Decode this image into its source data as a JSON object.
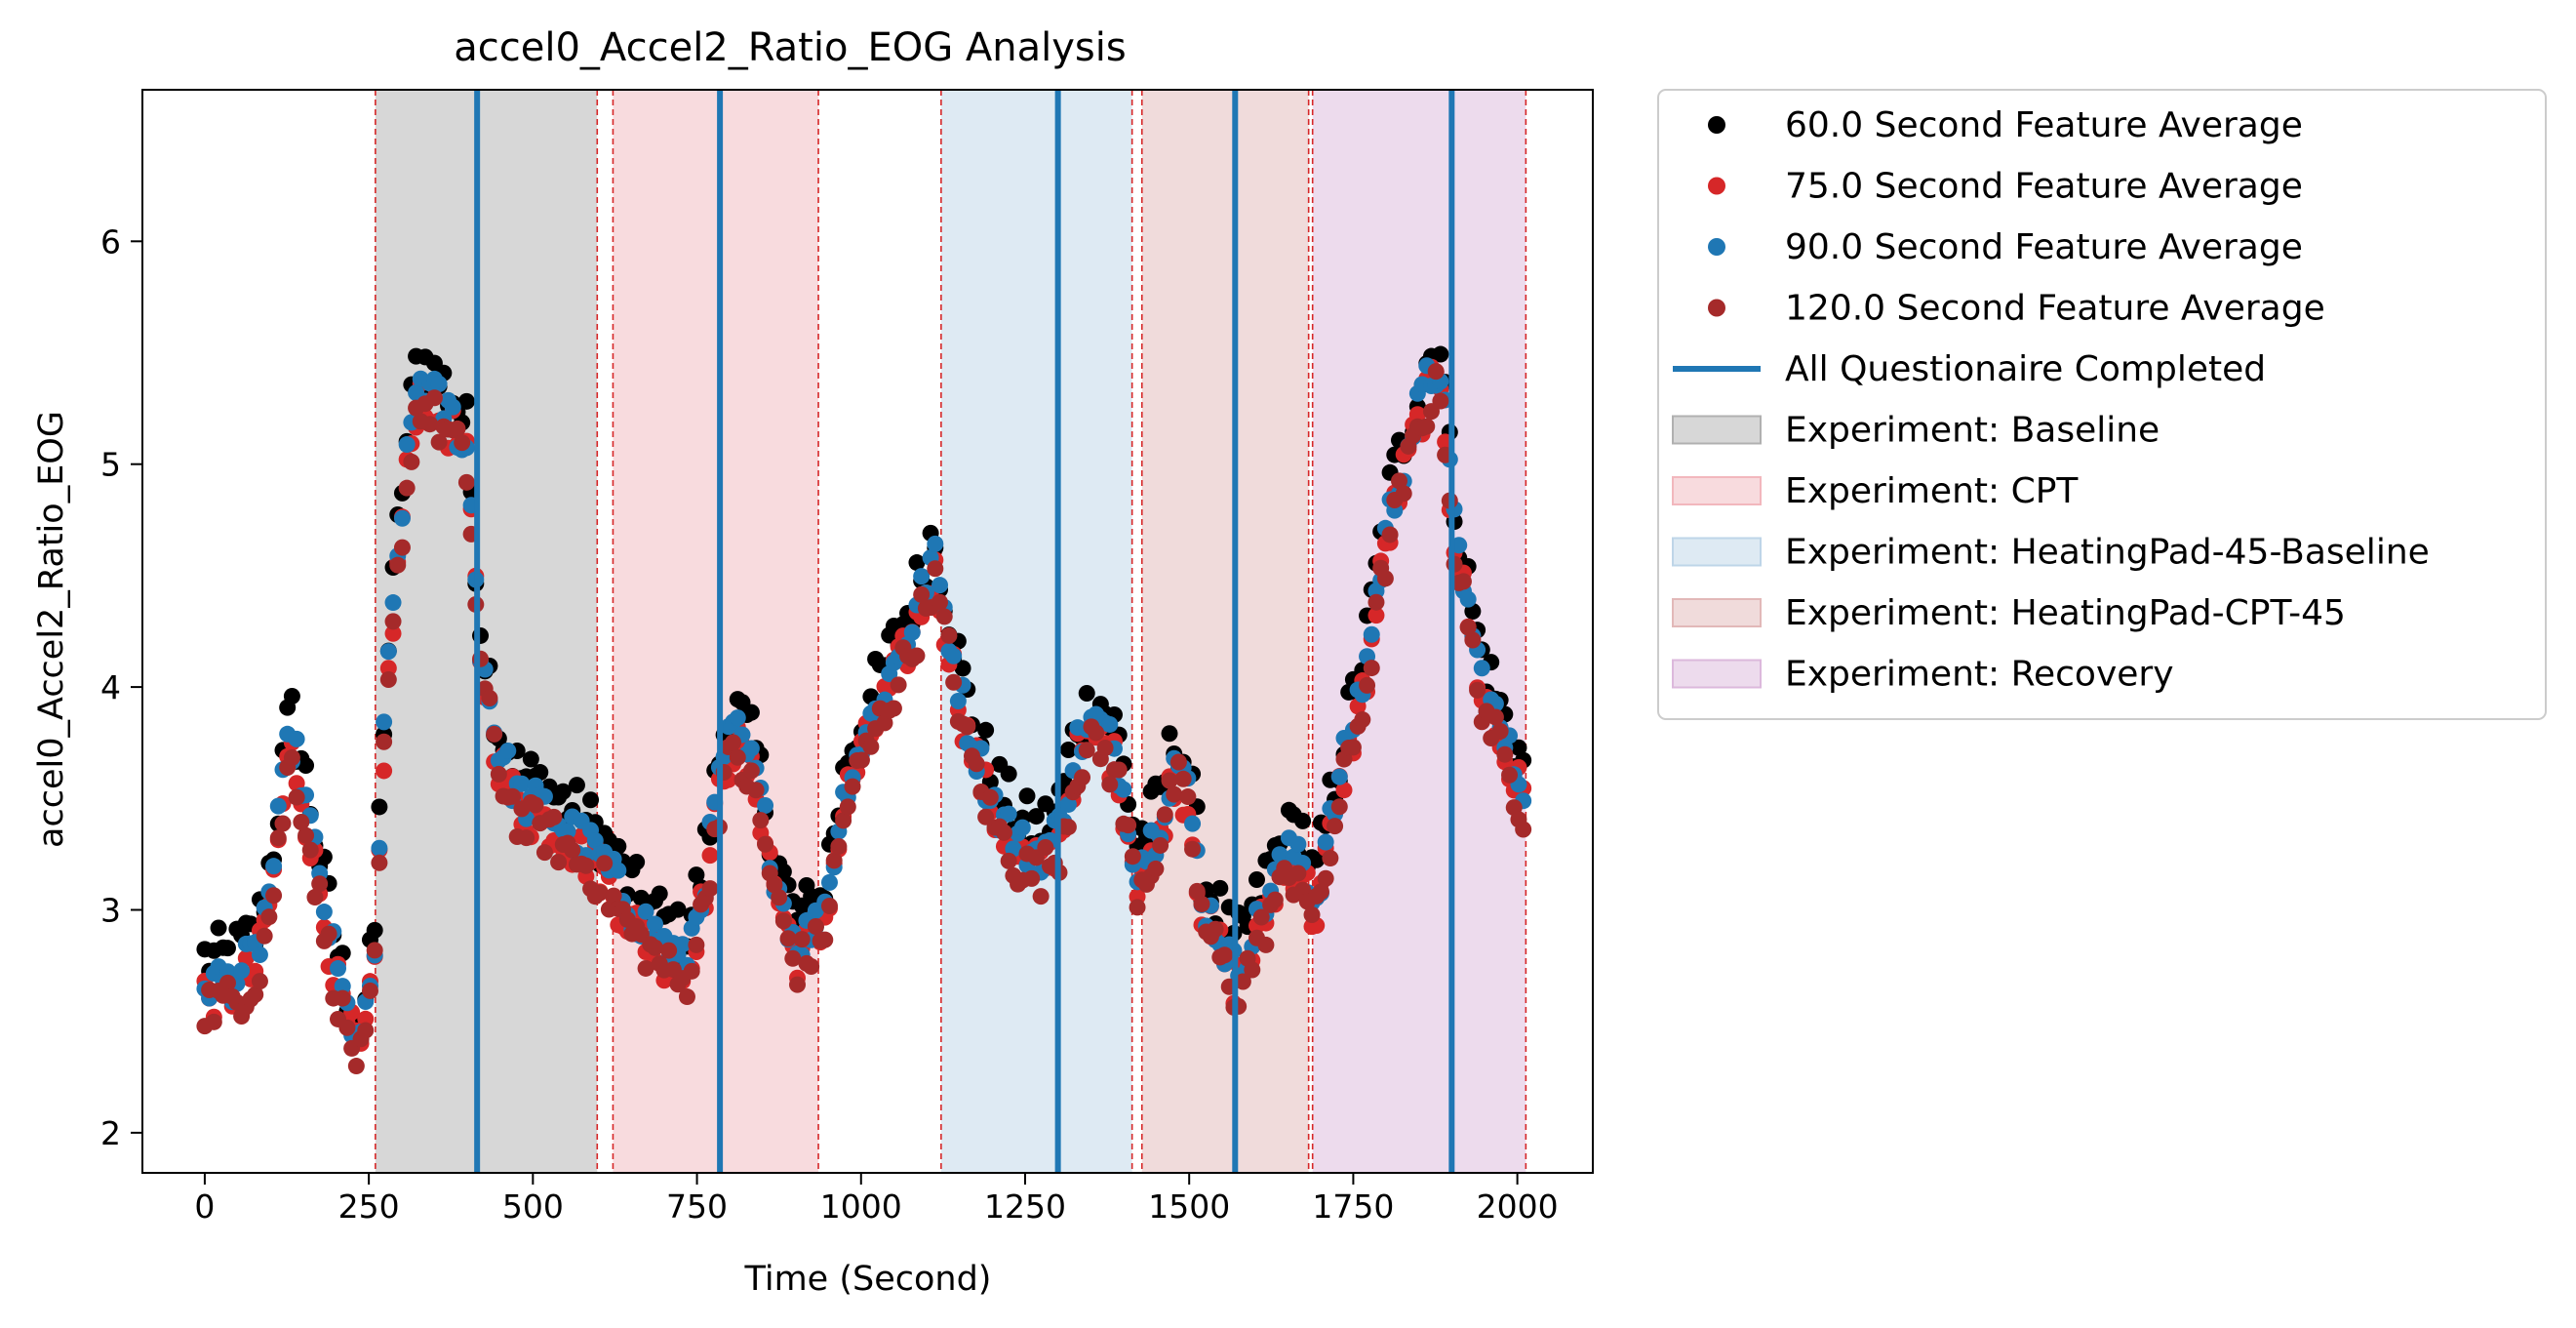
{
  "chart_data": {
    "type": "scatter",
    "title": "accel0_Accel2_Ratio_EOG Analysis",
    "xlabel": "Time (Second)",
    "ylabel": "accel0_Accel2_Ratio_EOG",
    "xlim": [
      -95,
      2115
    ],
    "ylim": [
      1.82,
      6.68
    ],
    "xticks": [
      0,
      250,
      500,
      750,
      1000,
      1250,
      1500,
      1750,
      2000
    ],
    "yticks": [
      2,
      3,
      4,
      5,
      6
    ],
    "legend_placement": "outside-right-top",
    "trend_knots": [
      [
        0,
        2.68
      ],
      [
        40,
        2.68
      ],
      [
        80,
        2.8
      ],
      [
        105,
        3.2
      ],
      [
        130,
        3.8
      ],
      [
        150,
        3.55
      ],
      [
        165,
        3.3
      ],
      [
        180,
        3.05
      ],
      [
        200,
        2.75
      ],
      [
        215,
        2.55
      ],
      [
        240,
        2.4
      ],
      [
        258,
        2.75
      ],
      [
        275,
        3.9
      ],
      [
        300,
        4.8
      ],
      [
        325,
        5.4
      ],
      [
        350,
        5.3
      ],
      [
        380,
        5.2
      ],
      [
        400,
        5.05
      ],
      [
        420,
        4.2
      ],
      [
        445,
        3.75
      ],
      [
        480,
        3.5
      ],
      [
        520,
        3.45
      ],
      [
        560,
        3.35
      ],
      [
        600,
        3.25
      ],
      [
        650,
        3.0
      ],
      [
        700,
        2.85
      ],
      [
        730,
        2.75
      ],
      [
        760,
        3.1
      ],
      [
        790,
        3.7
      ],
      [
        810,
        3.8
      ],
      [
        840,
        3.6
      ],
      [
        870,
        3.15
      ],
      [
        900,
        2.85
      ],
      [
        940,
        2.95
      ],
      [
        980,
        3.6
      ],
      [
        1030,
        3.95
      ],
      [
        1080,
        4.3
      ],
      [
        1110,
        4.6
      ],
      [
        1130,
        4.3
      ],
      [
        1160,
        3.85
      ],
      [
        1200,
        3.5
      ],
      [
        1240,
        3.3
      ],
      [
        1270,
        3.25
      ],
      [
        1300,
        3.35
      ],
      [
        1330,
        3.75
      ],
      [
        1360,
        3.85
      ],
      [
        1390,
        3.7
      ],
      [
        1420,
        3.2
      ],
      [
        1450,
        3.35
      ],
      [
        1480,
        3.7
      ],
      [
        1500,
        3.5
      ],
      [
        1520,
        3.05
      ],
      [
        1545,
        2.9
      ],
      [
        1570,
        2.72
      ],
      [
        1600,
        2.9
      ],
      [
        1630,
        3.15
      ],
      [
        1670,
        3.3
      ],
      [
        1690,
        3.0
      ],
      [
        1730,
        3.6
      ],
      [
        1770,
        4.1
      ],
      [
        1800,
        4.7
      ],
      [
        1830,
        5.05
      ],
      [
        1860,
        5.35
      ],
      [
        1885,
        5.45
      ],
      [
        1900,
        4.8
      ],
      [
        1940,
        4.1
      ],
      [
        1980,
        3.75
      ],
      [
        2010,
        3.55
      ]
    ],
    "series": [
      {
        "name": "60.0 Second Feature Average",
        "color": "#000000",
        "offset": 0.1,
        "noise": 0.14,
        "marker": "dot"
      },
      {
        "name": "75.0 Second Feature Average",
        "color": "#d62728",
        "offset": -0.06,
        "noise": 0.11,
        "marker": "dot"
      },
      {
        "name": "90.0 Second Feature Average",
        "color": "#1f77b4",
        "offset": 0.0,
        "noise": 0.1,
        "marker": "dot"
      },
      {
        "name": "120.0 Second Feature Average",
        "color": "#a52a2a",
        "offset": -0.1,
        "noise": 0.11,
        "marker": "dot"
      }
    ],
    "questionnaire_completed": {
      "label": "All Questionaire Completed",
      "color": "#1f77b4",
      "x": [
        415,
        785,
        1300,
        1570,
        1900
      ]
    },
    "experiments": [
      {
        "label": "Experiment: Baseline",
        "color": "#b0b0b0",
        "periods": [
          [
            260,
            598
          ]
        ]
      },
      {
        "label": "Experiment: CPT",
        "color": "#f2b7bd",
        "periods": [
          [
            622,
            935
          ]
        ]
      },
      {
        "label": "Experiment: HeatingPad-45-Baseline",
        "color": "#bed5e8",
        "periods": [
          [
            1122,
            1413
          ]
        ]
      },
      {
        "label": "Experiment: HeatingPad-CPT-45",
        "color": "#e2b8b8",
        "periods": [
          [
            1428,
            1682
          ]
        ]
      },
      {
        "label": "Experiment: Recovery",
        "color": "#dcb8dc",
        "periods": [
          [
            1688,
            2013
          ]
        ]
      }
    ],
    "boundary_lines": [
      260,
      598,
      622,
      935,
      1122,
      1413,
      1428,
      1682,
      1688,
      2013
    ]
  }
}
